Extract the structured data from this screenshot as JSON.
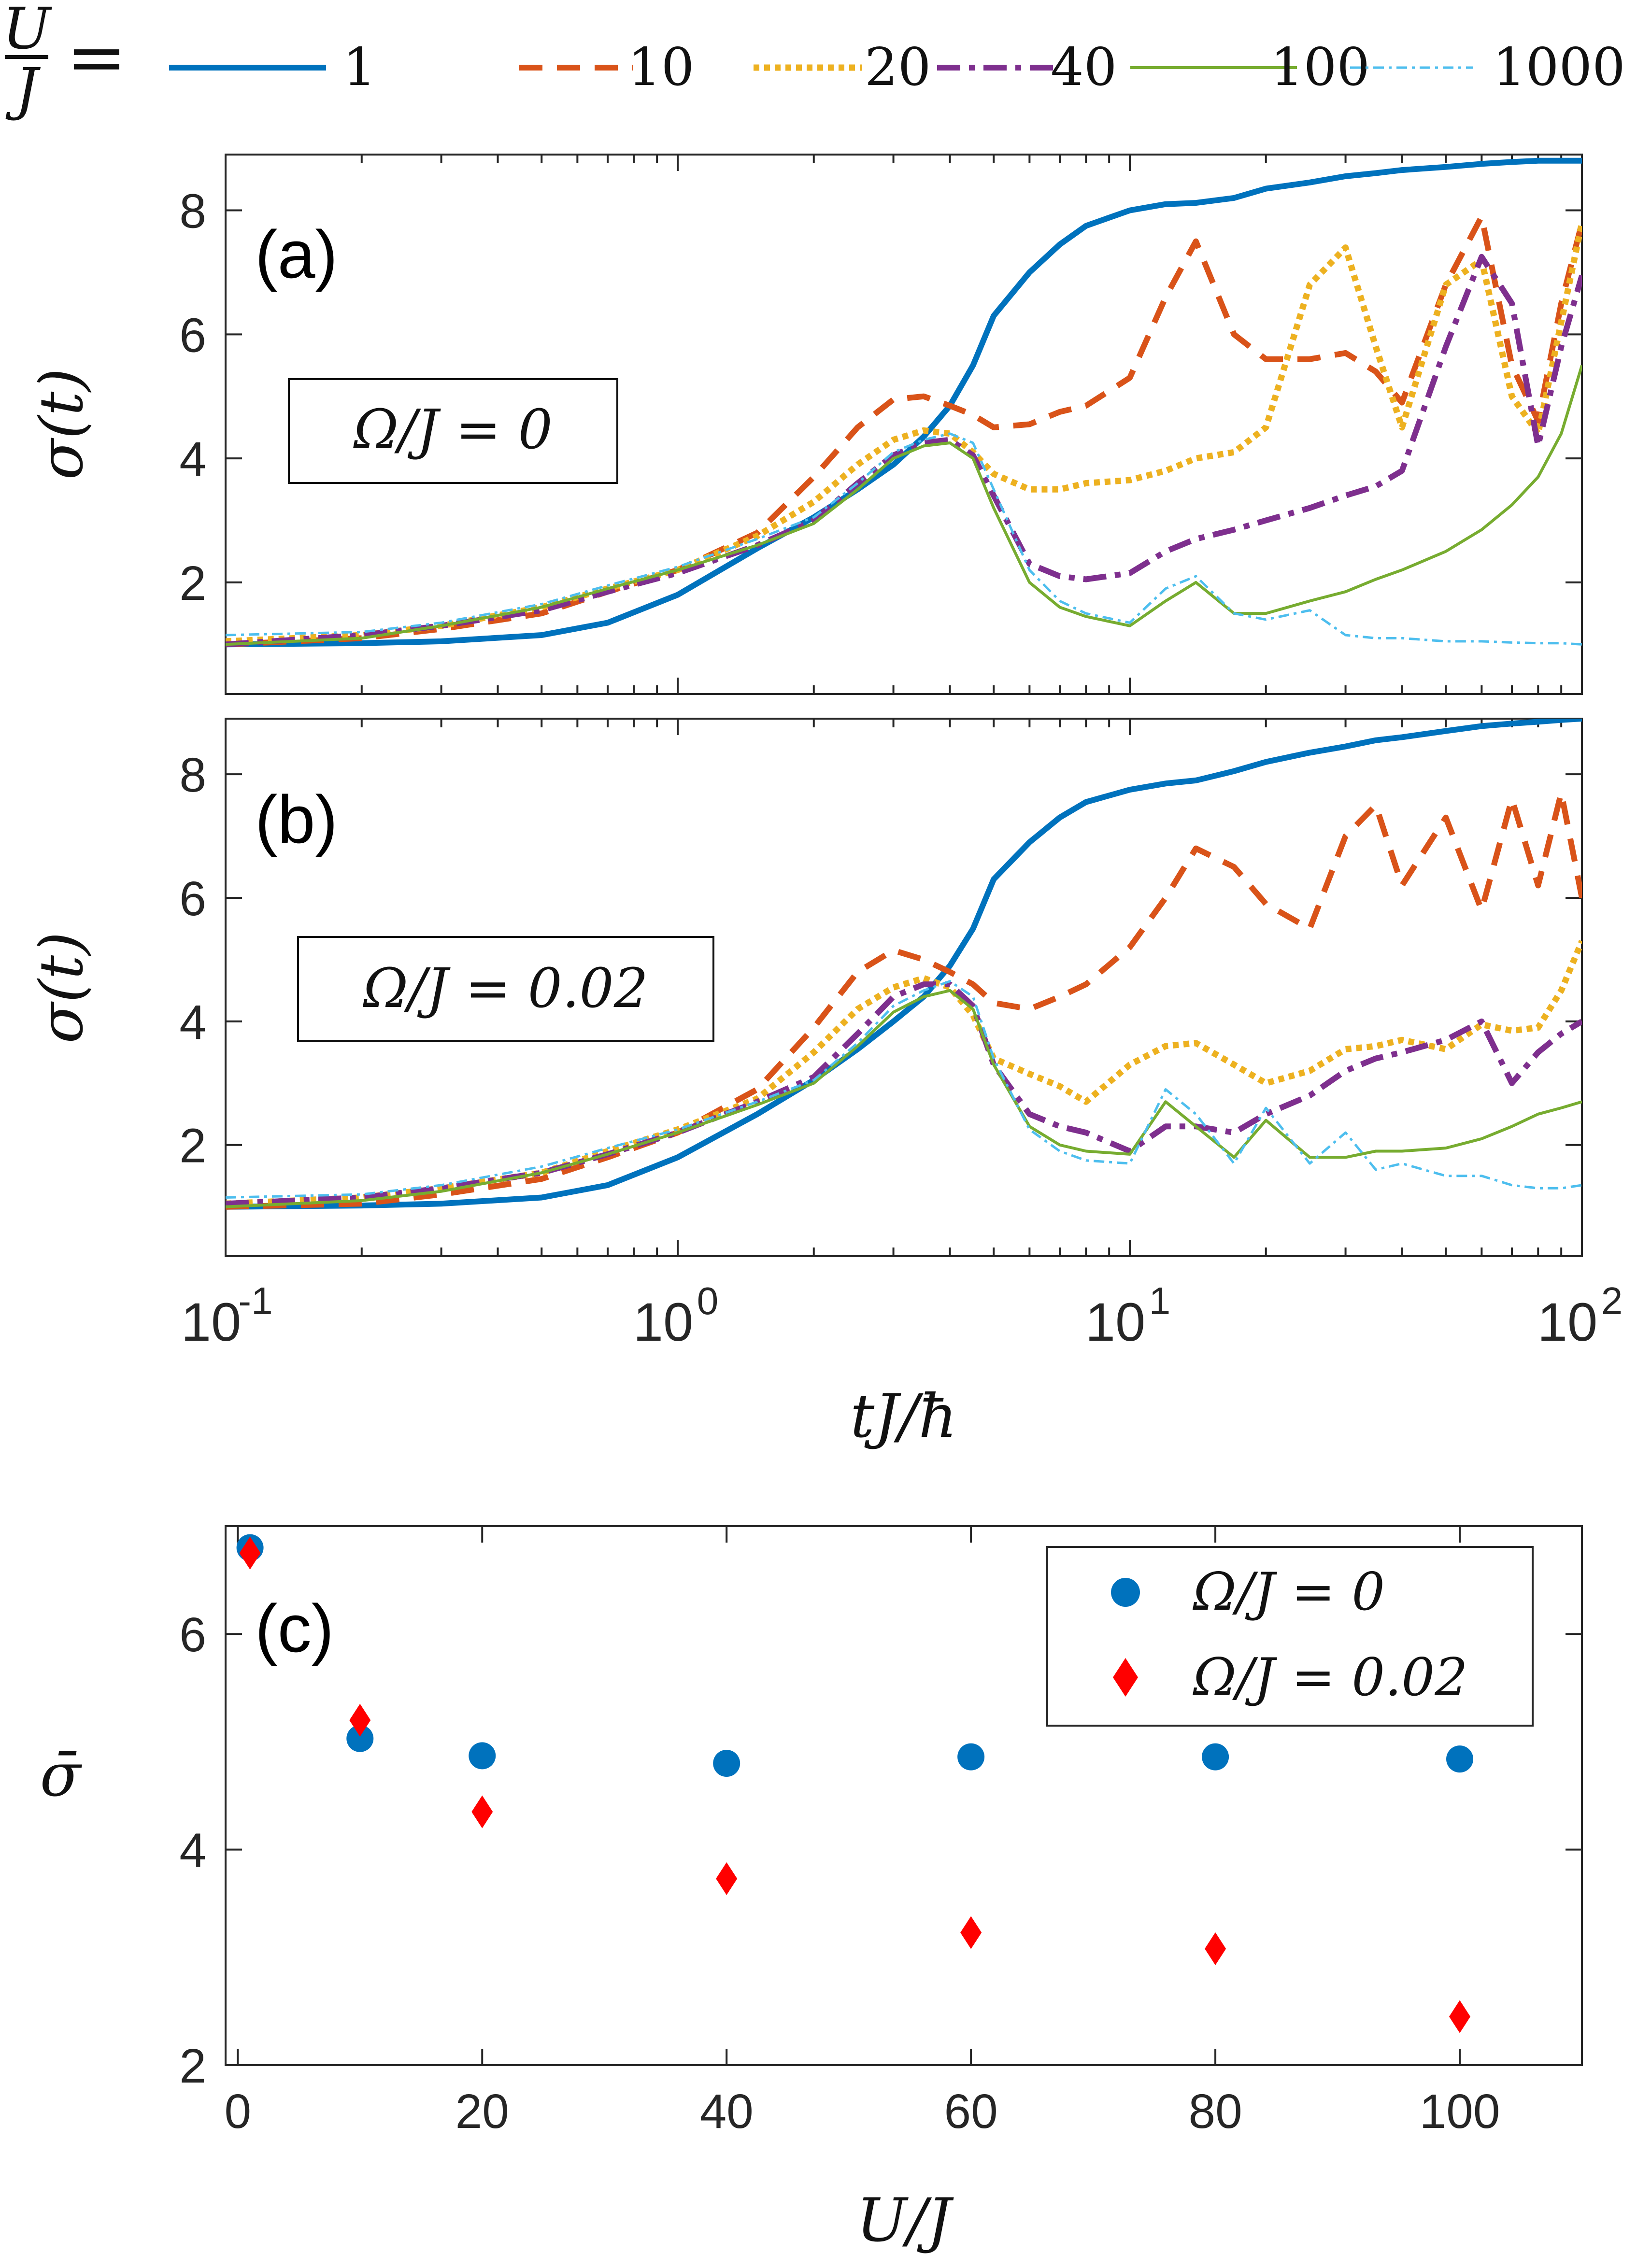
{
  "chart_data": [
    {
      "type": "line",
      "id": "a",
      "panel_label": "(a)",
      "annotation": "Ω/J = 0",
      "ylabel": "σ(t)",
      "xlabel": "",
      "xscale": "log",
      "xlim": [
        0.1,
        100
      ],
      "ylim": [
        0.2,
        8.9
      ],
      "yticks": [
        "2",
        "4",
        "6",
        "8"
      ],
      "x": [
        0.1,
        0.2,
        0.3,
        0.5,
        0.7,
        1.0,
        1.5,
        2.0,
        2.5,
        3.0,
        3.5,
        4.0,
        4.5,
        5.0,
        6.0,
        7.0,
        8.0,
        10.0,
        12.0,
        14.0,
        17.0,
        20.0,
        25.0,
        30.0,
        35.0,
        40.0,
        50.0,
        60.0,
        70.0,
        80.0,
        90.0,
        100.0
      ],
      "series": [
        {
          "name": "1",
          "values": [
            1.0,
            1.02,
            1.05,
            1.15,
            1.35,
            1.8,
            2.55,
            3.05,
            3.5,
            3.9,
            4.35,
            4.85,
            5.5,
            6.3,
            7.0,
            7.45,
            7.75,
            8.0,
            8.1,
            8.12,
            8.2,
            8.35,
            8.45,
            8.55,
            8.6,
            8.65,
            8.7,
            8.75,
            8.78,
            8.8,
            8.8,
            8.8
          ]
        },
        {
          "name": "10",
          "values": [
            1.0,
            1.1,
            1.25,
            1.5,
            1.85,
            2.2,
            2.8,
            3.7,
            4.5,
            4.95,
            5.0,
            4.85,
            4.7,
            4.5,
            4.55,
            4.75,
            4.85,
            5.3,
            6.6,
            7.5,
            6.0,
            5.6,
            5.6,
            5.7,
            5.4,
            4.9,
            6.8,
            7.9,
            5.5,
            4.6,
            6.5,
            7.8
          ]
        },
        {
          "name": "20",
          "values": [
            1.05,
            1.15,
            1.3,
            1.6,
            1.9,
            2.2,
            2.75,
            3.3,
            3.9,
            4.3,
            4.45,
            4.4,
            4.1,
            3.75,
            3.5,
            3.5,
            3.6,
            3.65,
            3.8,
            4.0,
            4.1,
            4.5,
            6.8,
            7.4,
            5.8,
            4.5,
            6.8,
            7.2,
            5.0,
            4.4,
            6.2,
            7.8
          ]
        },
        {
          "name": "40",
          "values": [
            1.0,
            1.15,
            1.3,
            1.55,
            1.85,
            2.15,
            2.6,
            3.0,
            3.6,
            4.05,
            4.25,
            4.3,
            4.05,
            3.4,
            2.3,
            2.1,
            2.05,
            2.15,
            2.5,
            2.7,
            2.85,
            3.0,
            3.2,
            3.4,
            3.55,
            3.8,
            5.8,
            7.25,
            6.5,
            4.2,
            5.8,
            6.95
          ]
        },
        {
          "name": "100",
          "values": [
            1.0,
            1.1,
            1.3,
            1.6,
            1.9,
            2.2,
            2.6,
            2.95,
            3.5,
            4.0,
            4.2,
            4.25,
            4.0,
            3.2,
            2.0,
            1.6,
            1.45,
            1.3,
            1.7,
            2.0,
            1.5,
            1.5,
            1.7,
            1.85,
            2.05,
            2.2,
            2.5,
            2.85,
            3.25,
            3.7,
            4.4,
            5.5
          ]
        },
        {
          "name": "1000",
          "values": [
            1.15,
            1.2,
            1.35,
            1.65,
            1.95,
            2.25,
            2.7,
            3.05,
            3.6,
            4.1,
            4.3,
            4.4,
            4.25,
            3.5,
            2.2,
            1.7,
            1.5,
            1.35,
            1.9,
            2.1,
            1.5,
            1.4,
            1.55,
            1.15,
            1.1,
            1.1,
            1.05,
            1.05,
            1.03,
            1.02,
            1.02,
            1.0
          ]
        }
      ]
    },
    {
      "type": "line",
      "id": "b",
      "panel_label": "(b)",
      "annotation": "Ω/J = 0.02",
      "ylabel": "σ(t)",
      "xlabel": "tJ/ħ",
      "xscale": "log",
      "xlim": [
        0.1,
        100
      ],
      "ylim": [
        0.2,
        8.9
      ],
      "yticks": [
        "2",
        "4",
        "6",
        "8"
      ],
      "xticks": [
        {
          "base": "10",
          "exp": "-1"
        },
        {
          "base": "10",
          "exp": "0"
        },
        {
          "base": "10",
          "exp": "1"
        },
        {
          "base": "10",
          "exp": "2"
        }
      ],
      "x": [
        0.1,
        0.2,
        0.3,
        0.5,
        0.7,
        1.0,
        1.5,
        2.0,
        2.5,
        3.0,
        3.5,
        4.0,
        4.5,
        5.0,
        6.0,
        7.0,
        8.0,
        10.0,
        12.0,
        14.0,
        17.0,
        20.0,
        25.0,
        30.0,
        35.0,
        40.0,
        50.0,
        60.0,
        70.0,
        80.0,
        90.0,
        100.0
      ],
      "series": [
        {
          "name": "1",
          "values": [
            1.0,
            1.02,
            1.05,
            1.15,
            1.35,
            1.8,
            2.5,
            3.05,
            3.55,
            4.0,
            4.4,
            4.9,
            5.5,
            6.3,
            6.9,
            7.3,
            7.55,
            7.75,
            7.85,
            7.9,
            8.05,
            8.2,
            8.35,
            8.45,
            8.55,
            8.6,
            8.7,
            8.78,
            8.82,
            8.85,
            8.88,
            8.9
          ]
        },
        {
          "name": "10",
          "values": [
            1.0,
            1.05,
            1.2,
            1.45,
            1.8,
            2.2,
            2.9,
            3.9,
            4.8,
            5.15,
            5.0,
            4.8,
            4.6,
            4.3,
            4.2,
            4.4,
            4.6,
            5.2,
            6.0,
            6.8,
            6.5,
            5.9,
            5.5,
            7.0,
            7.5,
            6.2,
            7.3,
            5.8,
            7.6,
            6.2,
            7.7,
            6.0
          ]
        },
        {
          "name": "20",
          "values": [
            1.05,
            1.15,
            1.3,
            1.55,
            1.9,
            2.25,
            2.75,
            3.5,
            4.2,
            4.55,
            4.7,
            4.55,
            4.1,
            3.4,
            3.15,
            2.95,
            2.7,
            3.3,
            3.6,
            3.65,
            3.3,
            3.0,
            3.2,
            3.55,
            3.6,
            3.7,
            3.55,
            3.95,
            3.85,
            3.9,
            4.5,
            5.3
          ]
        },
        {
          "name": "40",
          "values": [
            1.05,
            1.15,
            1.3,
            1.55,
            1.85,
            2.2,
            2.7,
            3.1,
            3.8,
            4.4,
            4.6,
            4.6,
            4.25,
            3.3,
            2.5,
            2.3,
            2.2,
            1.9,
            2.3,
            2.3,
            2.2,
            2.5,
            2.8,
            3.2,
            3.4,
            3.5,
            3.7,
            4.0,
            3.0,
            3.5,
            3.8,
            4.0
          ]
        },
        {
          "name": "100",
          "values": [
            1.0,
            1.1,
            1.25,
            1.55,
            1.85,
            2.2,
            2.65,
            3.0,
            3.6,
            4.15,
            4.4,
            4.5,
            4.2,
            3.3,
            2.3,
            2.0,
            1.9,
            1.85,
            2.7,
            2.3,
            1.8,
            2.4,
            1.8,
            1.8,
            1.9,
            1.9,
            1.95,
            2.1,
            2.3,
            2.5,
            2.6,
            2.7
          ]
        },
        {
          "name": "1000",
          "values": [
            1.15,
            1.2,
            1.35,
            1.65,
            1.95,
            2.25,
            2.7,
            3.05,
            3.65,
            4.25,
            4.5,
            4.65,
            4.4,
            3.4,
            2.25,
            1.9,
            1.75,
            1.7,
            2.9,
            2.5,
            1.7,
            2.6,
            1.7,
            2.2,
            1.6,
            1.7,
            1.5,
            1.5,
            1.35,
            1.3,
            1.3,
            1.35
          ]
        }
      ]
    },
    {
      "type": "scatter",
      "id": "c",
      "panel_label": "(c)",
      "ylabel": "σ̄",
      "xlabel": "U/J",
      "xlim": [
        -1,
        110
      ],
      "ylim": [
        2,
        7
      ],
      "xticks": [
        "0",
        "20",
        "40",
        "60",
        "80",
        "100"
      ],
      "yticks": [
        "2",
        "4",
        "6"
      ],
      "series": [
        {
          "name": "Ω/J = 0",
          "marker": "circle",
          "x": [
            1,
            10,
            20,
            40,
            60,
            80,
            100
          ],
          "values": [
            6.8,
            5.03,
            4.87,
            4.8,
            4.86,
            4.86,
            4.84
          ]
        },
        {
          "name": "Ω/J = 0.02",
          "marker": "diamond",
          "x": [
            1,
            10,
            20,
            40,
            60,
            80,
            100
          ],
          "values": [
            6.75,
            5.2,
            4.35,
            3.73,
            3.23,
            3.08,
            2.45
          ]
        }
      ]
    }
  ],
  "legend": {
    "label_num": "U",
    "label_den": "J",
    "equals": "=",
    "entries": [
      "1",
      "10",
      "20",
      "40",
      "100",
      "1000"
    ]
  },
  "colors": {
    "s1": "#0072BD",
    "s10": "#D95319",
    "s20": "#EDB120",
    "s40": "#7E2F8E",
    "s100": "#77AC30",
    "s1000": "#4DBEEE",
    "diamond": "#FF0000",
    "circle": "#0072BD"
  }
}
